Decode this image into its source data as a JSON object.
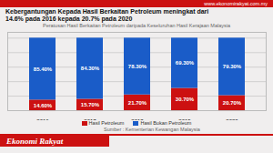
{
  "chart_data": {
    "type": "bar",
    "stacked": true,
    "title": "Kebergantungan Kepada Hasil Berkaitan Petroleum meningkat dari\n14.6% pada 2016 kepada 20.7% pada 2020",
    "subtitle": "Peratusan Hasil Berkaitan Petroleum daripada Keseluruhan Hasil Kerajaan Malaysia",
    "annotations": [
      "www.ekonomirakyat.com.my",
      "Sumber : Kementerian Kewangan Malaysia",
      "Ekonomi Rakyat"
    ],
    "categories": [
      "2016",
      "2017",
      "2018",
      "2019",
      "2020"
    ],
    "series": [
      {
        "name": "Hasil Petroleum",
        "color": "#cc1111",
        "values": [
          14.6,
          15.7,
          21.7,
          30.7,
          20.7
        ],
        "value_labels": [
          "14.60%",
          "15.70%",
          "21.70%",
          "30.70%",
          "20.70%"
        ]
      },
      {
        "name": "Hasil Bukan Petroleum",
        "color": "#1a5cc8",
        "values": [
          85.4,
          84.3,
          78.3,
          69.3,
          79.3
        ],
        "value_labels": [
          "85.40%",
          "84.30%",
          "78.30%",
          "69.30%",
          "79.30%"
        ]
      }
    ],
    "ylim": [
      0,
      108
    ],
    "yticks": [
      20,
      40,
      60,
      80,
      100
    ],
    "grid": true,
    "tick_labels": "x",
    "data_labels": true,
    "legend": "bottom"
  }
}
